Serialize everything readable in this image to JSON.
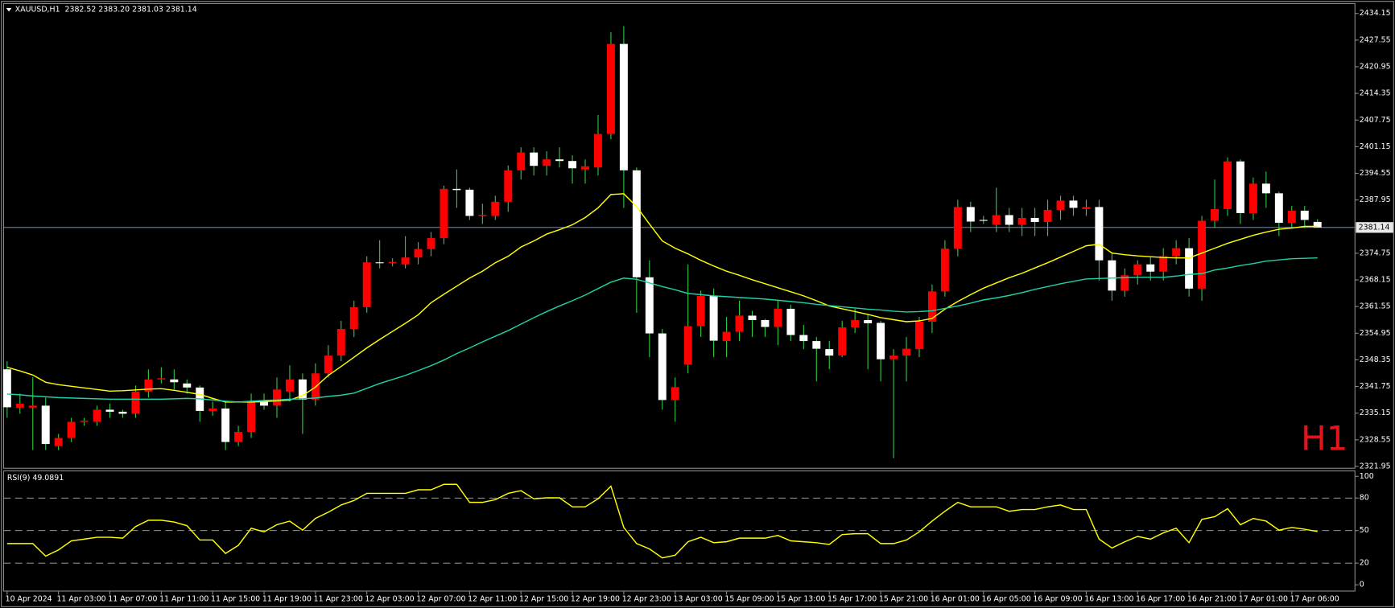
{
  "chart_data": [
    {
      "type": "candlestick",
      "title": "XAUUSD,H1  2382.52 2383.20 2381.03 2381.14",
      "annotation": "H1",
      "categories": [
        "10 Apr 2024",
        null,
        null,
        null,
        "11 Apr 03:00",
        null,
        null,
        null,
        "11 Apr 07:00",
        null,
        null,
        null,
        "11 Apr 11:00",
        null,
        null,
        null,
        "11 Apr 15:00",
        null,
        null,
        null,
        "11 Apr 19:00",
        null,
        null,
        null,
        "11 Apr 23:00",
        null,
        null,
        null,
        "12 Apr 03:00",
        null,
        null,
        null,
        "12 Apr 07:00",
        null,
        null,
        null,
        "12 Apr 11:00",
        null,
        null,
        null,
        "12 Apr 15:00",
        null,
        null,
        null,
        "12 Apr 19:00",
        null,
        null,
        null,
        "12 Apr 23:00",
        null,
        null,
        null,
        "13 Apr 03:00",
        null,
        null,
        null,
        "15 Apr 09:00",
        null,
        null,
        null,
        "15 Apr 13:00",
        null,
        null,
        null,
        "15 Apr 17:00",
        null,
        null,
        null,
        "15 Apr 21:00",
        null,
        null,
        null,
        "16 Apr 01:00",
        null,
        null,
        null,
        "16 Apr 05:00",
        null,
        null,
        null,
        "16 Apr 09:00",
        null,
        null,
        null,
        "16 Apr 13:00",
        null,
        null,
        null,
        "16 Apr 17:00",
        null,
        null,
        null,
        "16 Apr 21:00",
        null,
        null,
        null,
        "17 Apr 01:00",
        null,
        null,
        null,
        "17 Apr 06:00",
        null,
        null
      ],
      "open": [
        2346,
        2336.5,
        2336.5,
        2337,
        2327,
        2329,
        2333,
        2333,
        2336,
        2335.5,
        2335,
        2340.5,
        2343.5,
        2343.5,
        2342.5,
        2341.5,
        2335.7,
        2336.3,
        2328,
        2330.5,
        2338,
        2337,
        2340.5,
        2343.5,
        2338.5,
        2345,
        2349.4,
        2356,
        2361.4,
        2372.5,
        2372.3,
        2372,
        2373.7,
        2375.8,
        2378.5,
        2390.7,
        2390.5,
        2384,
        2384,
        2387.5,
        2395.3,
        2399.7,
        2396.4,
        2398,
        2397.6,
        2395.5,
        2396,
        2404.3,
        2426.6,
        2395.3,
        2368.8,
        2354.9,
        2338.4,
        2347.2,
        2356.7,
        2364.2,
        2353,
        2355.3,
        2359.3,
        2358.2,
        2356.5,
        2361,
        2354.5,
        2353,
        2351,
        2349.4,
        2356.4,
        2358.2,
        2357.5,
        2348.5,
        2349.4,
        2351,
        2357.8,
        2365.3,
        2375.9,
        2386.2,
        2383,
        2381.8,
        2384.2,
        2381.8,
        2383.5,
        2382.5,
        2385.5,
        2387.8,
        2385.7,
        2386.2,
        2373,
        2365.5,
        2369.3,
        2372,
        2370.2,
        2374,
        2376,
        2366,
        2382.8,
        2385.7,
        2397.5,
        2384.7,
        2392,
        2389.6,
        2382.3,
        2385.3,
        2382.52
      ],
      "high": [
        2348,
        2340,
        2344,
        2339,
        2330,
        2334,
        2334,
        2337,
        2337.5,
        2336,
        2342,
        2346,
        2346.5,
        2346,
        2343.5,
        2342,
        2338,
        2338,
        2332,
        2340,
        2340,
        2344,
        2347,
        2345,
        2347.5,
        2352,
        2358,
        2363,
        2374,
        2378,
        2373.5,
        2379,
        2377.5,
        2380,
        2391.5,
        2395.5,
        2391,
        2387,
        2389,
        2396.5,
        2401,
        2401,
        2400,
        2401,
        2399,
        2398,
        2409,
        2429.5,
        2431,
        2396,
        2373,
        2356,
        2344,
        2372,
        2365.5,
        2366,
        2359,
        2363,
        2360.5,
        2358.5,
        2363,
        2362,
        2357,
        2354,
        2353,
        2358,
        2361,
        2359.5,
        2358,
        2351,
        2354,
        2359,
        2367,
        2378,
        2388,
        2387.5,
        2384,
        2391,
        2386,
        2386,
        2386,
        2388,
        2389,
        2389,
        2388,
        2388,
        2375,
        2371,
        2373,
        2374,
        2376,
        2378,
        2378.5,
        2384,
        2393,
        2398.5,
        2398,
        2393.5,
        2395,
        2390,
        2386.5,
        2386.5,
        2383.2
      ],
      "low": [
        2334,
        2335,
        2326,
        2326,
        2326,
        2328,
        2332,
        2332,
        2334,
        2334,
        2334,
        2339,
        2342.5,
        2341,
        2340,
        2333,
        2334.5,
        2326,
        2327,
        2329,
        2336,
        2334,
        2338,
        2330,
        2337,
        2344,
        2348,
        2354,
        2360,
        2371,
        2371.5,
        2371,
        2372,
        2374,
        2377,
        2386,
        2383,
        2382,
        2383,
        2385,
        2393,
        2394,
        2394,
        2396,
        2392,
        2392,
        2394,
        2403,
        2386,
        2360,
        2349,
        2336,
        2333,
        2345,
        2354,
        2349,
        2349,
        2353,
        2354,
        2354,
        2352,
        2353,
        2351,
        2343,
        2346,
        2349,
        2355,
        2346,
        2343,
        2324,
        2343,
        2349,
        2355,
        2364,
        2374,
        2380,
        2382,
        2380,
        2380,
        2379,
        2379,
        2379,
        2383,
        2384,
        2384,
        2368,
        2363,
        2364,
        2367,
        2368,
        2368,
        2372,
        2364,
        2363,
        2381,
        2384,
        2382,
        2383,
        2386,
        2379,
        2381,
        2381,
        2381.03
      ],
      "close": [
        2336.6,
        2337.5,
        2337,
        2327.5,
        2329,
        2333,
        2333.3,
        2336,
        2335.5,
        2335,
        2340.5,
        2343.5,
        2343.8,
        2342.8,
        2341.5,
        2335.7,
        2336.3,
        2328,
        2330.5,
        2338,
        2337,
        2341,
        2343.5,
        2338.5,
        2345,
        2349.4,
        2356,
        2361.4,
        2372.5,
        2372.3,
        2372.6,
        2373.7,
        2375.8,
        2378.5,
        2390.7,
        2390.4,
        2384,
        2384.3,
        2387.5,
        2395.3,
        2399.7,
        2396.4,
        2398,
        2397.6,
        2395.8,
        2396.3,
        2404.3,
        2426.6,
        2395.3,
        2368.8,
        2354.9,
        2338.4,
        2341.6,
        2356.7,
        2364.2,
        2353.1,
        2355.3,
        2359.3,
        2358.2,
        2356.5,
        2361,
        2354.5,
        2353,
        2351.1,
        2349.4,
        2356.4,
        2358.2,
        2357.4,
        2348.5,
        2349.4,
        2351.1,
        2357.8,
        2365.3,
        2375.9,
        2386.2,
        2382.6,
        2383,
        2384.2,
        2381.8,
        2383.5,
        2382.5,
        2385.5,
        2387.8,
        2386,
        2386.2,
        2373,
        2365.5,
        2369.3,
        2372,
        2370.2,
        2374,
        2376,
        2366,
        2382.8,
        2385.7,
        2397.5,
        2384.7,
        2392,
        2389.6,
        2382.3,
        2385.3,
        2383,
        2381.14
      ],
      "up_color": "#ff0000",
      "down_color": "#ffffff",
      "wick_color": "#2ecc40",
      "lines": [
        {
          "color": "#ffff00",
          "values": [
            2346.5,
            2345.6,
            2344.6,
            2342.8,
            2342.2,
            2341.8,
            2341.4,
            2341.0,
            2340.6,
            2340.7,
            2340.9,
            2341.1,
            2341.2,
            2340.8,
            2340.3,
            2339.8,
            2338.8,
            2337.9,
            2337.9,
            2337.9,
            2338.0,
            2338.2,
            2338.4,
            2339.5,
            2341.6,
            2344.5,
            2346.7,
            2349.0,
            2351.3,
            2353.4,
            2355.4,
            2357.4,
            2359.5,
            2362.5,
            2364.6,
            2366.6,
            2368.6,
            2370.3,
            2372.4,
            2374.0,
            2376.3,
            2377.8,
            2379.5,
            2380.6,
            2381.8,
            2383.6,
            2386.0,
            2389.3,
            2389.5,
            2386.3,
            2382.0,
            2377.8,
            2376.0,
            2374.6,
            2373.0,
            2371.6,
            2370.3,
            2369.3,
            2368.2,
            2367.2,
            2366.2,
            2365.2,
            2364.2,
            2363.0,
            2361.7,
            2361.0,
            2360.3,
            2359.6,
            2358.8,
            2358.3,
            2357.8,
            2358.0,
            2358.6,
            2360.9,
            2362.8,
            2364.5,
            2366.1,
            2367.4,
            2368.7,
            2369.8,
            2371.1,
            2372.4,
            2373.8,
            2375.2,
            2376.6,
            2377.0,
            2374.8,
            2374.4,
            2374.1,
            2373.9,
            2373.7,
            2373.6,
            2373.6,
            2374.8,
            2376.0,
            2377.2,
            2378.2,
            2379.2,
            2380.0,
            2380.7,
            2381.0,
            2381.4,
            2381.4
          ]
        },
        {
          "color": "#1fd1a5",
          "values": [
            2339.9,
            2339.7,
            2339.4,
            2339.2,
            2339.0,
            2338.9,
            2338.8,
            2338.7,
            2338.6,
            2338.6,
            2338.6,
            2338.6,
            2338.6,
            2338.7,
            2338.8,
            2338.7,
            2338.4,
            2338.1,
            2337.9,
            2338.1,
            2338.3,
            2338.4,
            2338.6,
            2338.7,
            2338.9,
            2339.3,
            2339.6,
            2340.1,
            2341.3,
            2342.5,
            2343.5,
            2344.5,
            2345.7,
            2346.9,
            2348.3,
            2349.9,
            2351.3,
            2352.8,
            2354.2,
            2355.6,
            2357.2,
            2358.8,
            2360.3,
            2361.7,
            2363.0,
            2364.4,
            2366.0,
            2367.6,
            2368.6,
            2368.3,
            2367.4,
            2366.5,
            2365.7,
            2364.8,
            2364.5,
            2364.2,
            2364.0,
            2363.8,
            2363.6,
            2363.4,
            2363.1,
            2362.8,
            2362.5,
            2362.1,
            2361.8,
            2361.5,
            2361.2,
            2360.9,
            2360.7,
            2360.4,
            2360.2,
            2360.3,
            2360.5,
            2361.1,
            2361.7,
            2362.4,
            2363.2,
            2363.7,
            2364.3,
            2365.0,
            2365.8,
            2366.5,
            2367.2,
            2367.8,
            2368.4,
            2368.5,
            2368.6,
            2368.7,
            2368.8,
            2368.8,
            2368.8,
            2369.1,
            2369.5,
            2369.7,
            2370.6,
            2371.1,
            2371.7,
            2372.2,
            2372.8,
            2373.1,
            2373.4,
            2373.5,
            2373.6
          ]
        }
      ],
      "current_price": 2381.14,
      "ylim": [
        2321.5,
        2436.6
      ],
      "yticks": [
        2434.15,
        2427.55,
        2420.95,
        2414.35,
        2407.75,
        2401.15,
        2394.55,
        2387.95,
        2374.75,
        2368.15,
        2361.55,
        2354.95,
        2348.35,
        2341.75,
        2335.15,
        2328.55,
        2321.95
      ]
    },
    {
      "type": "line",
      "title": "RSI(9) 49.0891",
      "series": [
        {
          "color": "#ffff00",
          "values": [
            38.0,
            38.0,
            38.0,
            26.4,
            32.2,
            40.5,
            42.1,
            43.8,
            43.8,
            43.0,
            53.7,
            59.5,
            59.5,
            57.9,
            54.5,
            41.3,
            41.3,
            28.9,
            36.4,
            52.1,
            48.8,
            55.4,
            58.7,
            50.4,
            61.2,
            66.9,
            73.6,
            77.7,
            84.3,
            84.3,
            84.3,
            84.3,
            87.6,
            87.6,
            92.6,
            92.6,
            76.0,
            76.0,
            78.5,
            84.3,
            86.8,
            79.3,
            80.2,
            80.2,
            71.9,
            71.9,
            79.3,
            90.9,
            52.9,
            38.0,
            33.1,
            24.8,
            27.3,
            39.7,
            43.8,
            38.8,
            39.7,
            43.0,
            43.0,
            43.0,
            45.5,
            40.5,
            39.7,
            38.8,
            37.2,
            46.3,
            47.1,
            47.1,
            38.0,
            38.0,
            41.3,
            48.8,
            58.7,
            67.8,
            76.0,
            71.9,
            71.9,
            71.9,
            67.8,
            69.4,
            69.4,
            71.9,
            73.6,
            69.4,
            69.4,
            42.1,
            33.9,
            39.7,
            44.6,
            42.1,
            47.9,
            52.1,
            38.8,
            60.3,
            62.8,
            70.2,
            55.4,
            61.2,
            58.7,
            50.4,
            52.9,
            51.2,
            49.0891
          ]
        }
      ],
      "levels": [
        80,
        50,
        20
      ],
      "ylim": [
        -5.8,
        105
      ],
      "yticks": [
        100,
        80,
        50,
        20,
        0
      ]
    }
  ]
}
